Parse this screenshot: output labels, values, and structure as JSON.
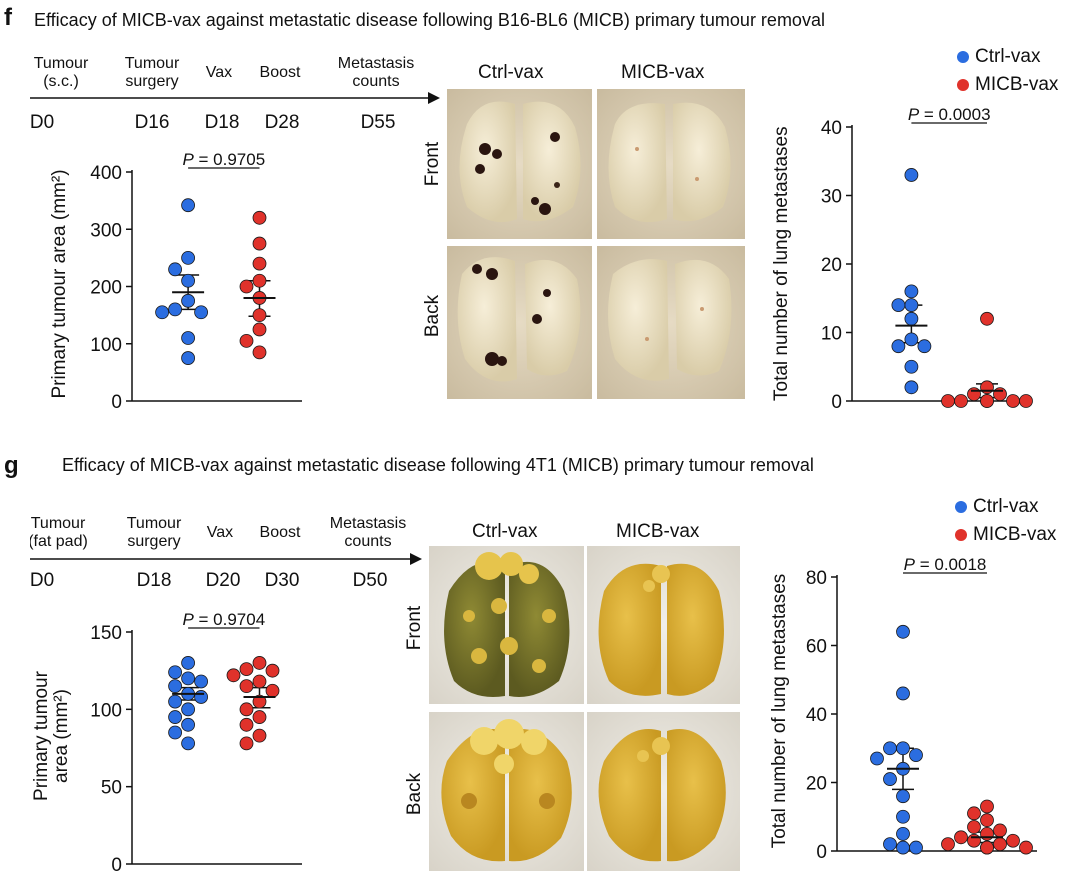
{
  "panel_f": {
    "letter": "f",
    "title": "Efficacy of MICB-vax against metastatic disease following B16-BL6 (MICB) primary tumour removal",
    "timeline": [
      {
        "event": "Tumour",
        "event2": "(s.c.)",
        "day": "D0"
      },
      {
        "event": "Tumour",
        "event2": "surgery",
        "day": "D16"
      },
      {
        "event": "Vax",
        "event2": "",
        "day": "D18"
      },
      {
        "event": "Boost",
        "event2": "",
        "day": "D28"
      },
      {
        "event": "Metastasis",
        "event2": "counts",
        "day": "D55"
      }
    ],
    "photos": {
      "col1": "Ctrl-vax",
      "col2": "MICB-vax",
      "row1": "Front",
      "row2": "Back"
    },
    "legend": [
      {
        "label": "Ctrl-vax",
        "color": "#2b6de0"
      },
      {
        "label": "MICB-vax",
        "color": "#e0322b"
      }
    ]
  },
  "panel_g": {
    "letter": "g",
    "title": "Efficacy of MICB-vax against metastatic disease following 4T1 (MICB) primary tumour removal",
    "timeline": [
      {
        "event": "Tumour",
        "event2": "(fat pad)",
        "day": "D0"
      },
      {
        "event": "Tumour",
        "event2": "surgery",
        "day": "D18"
      },
      {
        "event": "Vax",
        "event2": "",
        "day": "D20"
      },
      {
        "event": "Boost",
        "event2": "",
        "day": "D30"
      },
      {
        "event": "Metastasis",
        "event2": "counts",
        "day": "D50"
      }
    ],
    "photos": {
      "col1": "Ctrl-vax",
      "col2": "MICB-vax",
      "row1": "Front",
      "row2": "Back"
    },
    "legend": [
      {
        "label": "Ctrl-vax",
        "color": "#2b6de0"
      },
      {
        "label": "MICB-vax",
        "color": "#e0322b"
      }
    ]
  },
  "colors": {
    "ctrl": "#2b6de0",
    "micb": "#e0322b"
  },
  "chart_data": [
    {
      "id": "f_tumour",
      "type": "scatter",
      "ylabel": "Primary tumour area (mm²)",
      "ylim": [
        0,
        400
      ],
      "yticks": [
        0,
        100,
        200,
        300,
        400
      ],
      "pvalue": "0.9705",
      "series": [
        {
          "values": [
            342,
            250,
            230,
            210,
            175,
            160,
            155,
            155,
            110,
            75
          ],
          "mean": 190,
          "sem_low": 160,
          "sem_high": 220
        },
        {
          "values": [
            320,
            275,
            240,
            210,
            200,
            180,
            150,
            125,
            105,
            85
          ],
          "mean": 180,
          "sem_low": 148,
          "sem_high": 210
        }
      ]
    },
    {
      "id": "f_mets",
      "type": "scatter",
      "ylabel": "Total number of lung metastases",
      "ylim": [
        0,
        40
      ],
      "yticks": [
        0,
        10,
        20,
        30,
        40
      ],
      "pvalue": "0.0003",
      "series": [
        {
          "values": [
            33,
            16,
            14,
            14,
            12,
            9,
            8,
            8,
            5,
            2
          ],
          "mean": 11,
          "sem_low": 8.5,
          "sem_high": 14
        },
        {
          "values": [
            12,
            2,
            1,
            1,
            0,
            0,
            0,
            0,
            0,
            0
          ],
          "mean": 1.5,
          "sem_low": 0.5,
          "sem_high": 2.5
        }
      ]
    },
    {
      "id": "g_tumour",
      "type": "scatter",
      "ylabel_line1": "Primary tumour",
      "ylabel_line2": "area (mm²)",
      "ylim": [
        0,
        150
      ],
      "yticks": [
        0,
        50,
        100,
        150
      ],
      "pvalue": "0.9704",
      "series": [
        {
          "values": [
            130,
            124,
            120,
            118,
            115,
            110,
            108,
            105,
            100,
            95,
            90,
            85,
            78
          ],
          "mean": 110,
          "sem_low": 106,
          "sem_high": 114
        },
        {
          "values": [
            130,
            126,
            125,
            122,
            118,
            115,
            112,
            105,
            100,
            95,
            90,
            83,
            78
          ],
          "mean": 108,
          "sem_low": 101,
          "sem_high": 114
        }
      ]
    },
    {
      "id": "g_mets",
      "type": "scatter",
      "ylabel": "Total number of lung metastases",
      "ylim": [
        0,
        80
      ],
      "yticks": [
        0,
        20,
        40,
        60,
        80
      ],
      "pvalue": "0.0018",
      "series": [
        {
          "values": [
            64,
            46,
            30,
            30,
            28,
            27,
            24,
            21,
            16,
            10,
            5,
            2,
            1,
            1
          ],
          "mean": 24,
          "sem_low": 18,
          "sem_high": 30
        },
        {
          "values": [
            13,
            11,
            9,
            7,
            6,
            5,
            4,
            3,
            3,
            2,
            2,
            1,
            1,
            1
          ],
          "mean": 4,
          "sem_low": 2.5,
          "sem_high": 5.5
        }
      ]
    }
  ]
}
